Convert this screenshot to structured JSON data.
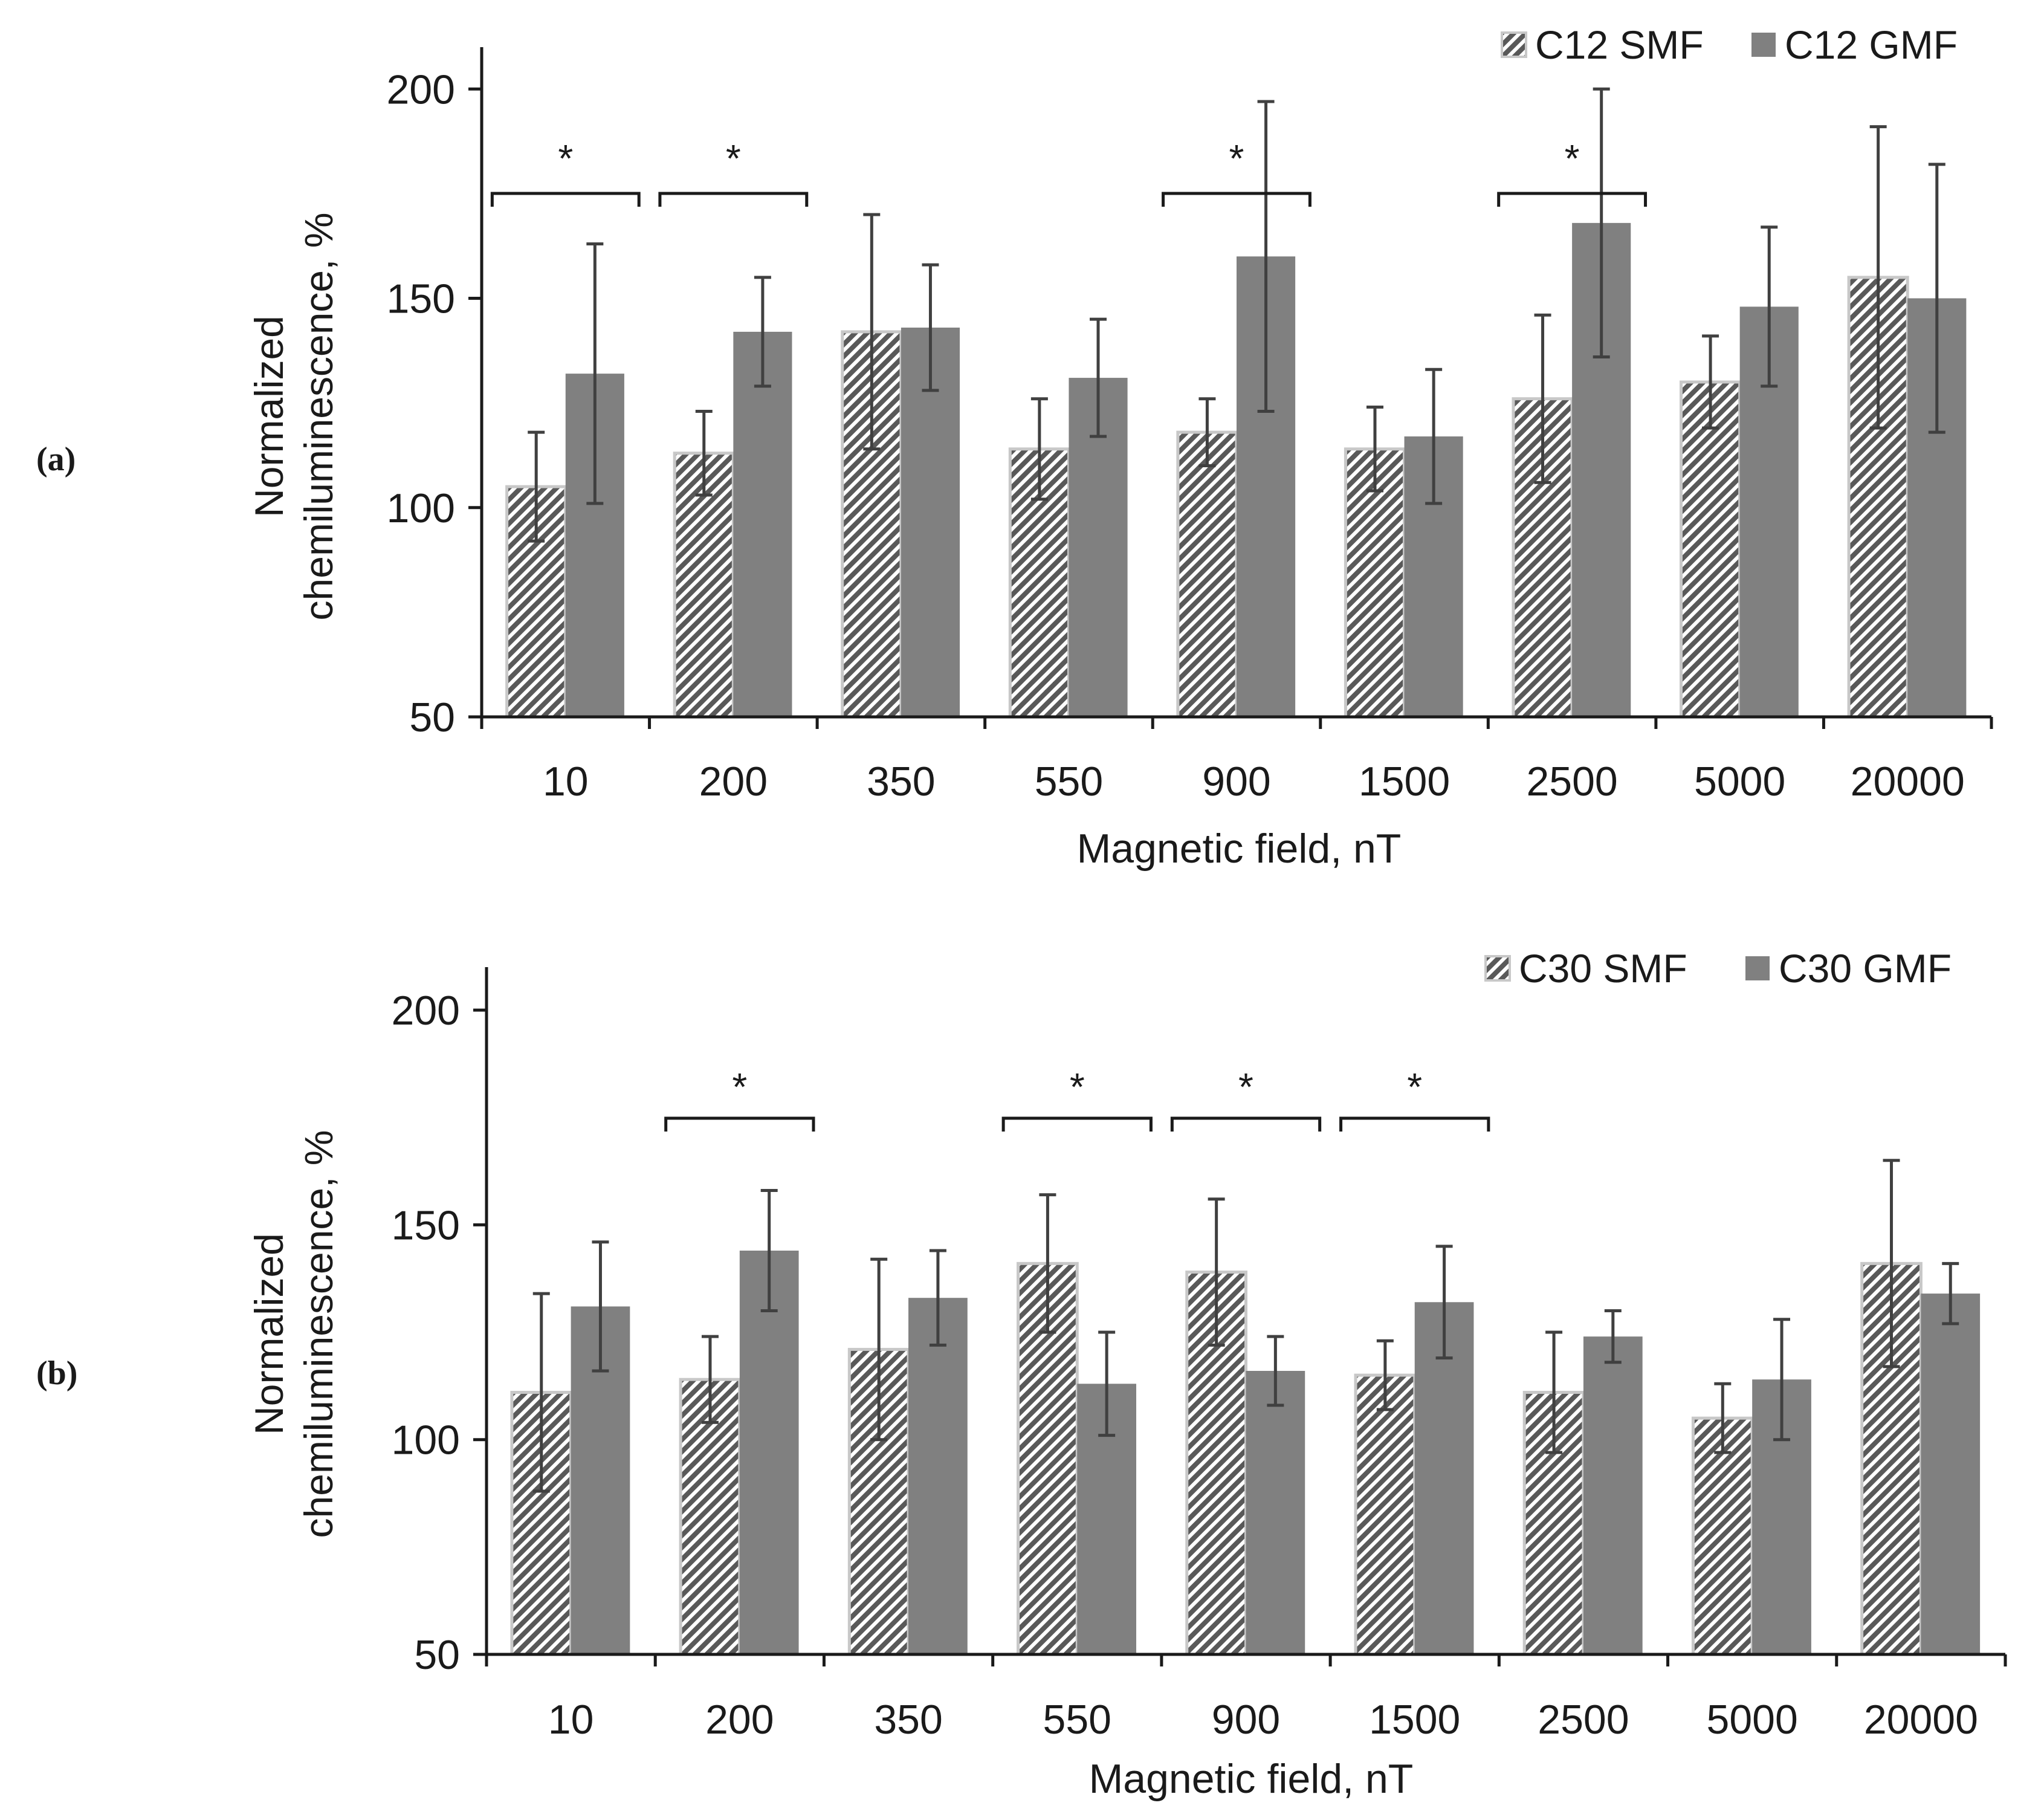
{
  "chart_data": [
    {
      "type": "bar",
      "panel_label": "(a)",
      "categories": [
        "10",
        "200",
        "350",
        "550",
        "900",
        "1500",
        "2500",
        "5000",
        "20000"
      ],
      "series": [
        {
          "name": "C12 SMF",
          "pattern": "hatched",
          "values": [
            105,
            113,
            142,
            114,
            118,
            114,
            126,
            130,
            155
          ],
          "errors": [
            13,
            10,
            28,
            12,
            8,
            10,
            20,
            11,
            36
          ]
        },
        {
          "name": "C12 GMF",
          "pattern": "solid",
          "values": [
            132,
            142,
            143,
            131,
            160,
            117,
            168,
            148,
            150
          ],
          "errors": [
            31,
            13,
            15,
            14,
            37,
            16,
            32,
            19,
            32
          ]
        }
      ],
      "significance": [
        {
          "category": "10",
          "label": "*"
        },
        {
          "category": "200",
          "label": "*"
        },
        {
          "category": "900",
          "label": "*"
        },
        {
          "category": "2500",
          "label": "*"
        }
      ],
      "title": "",
      "xlabel": "Magnetic field, nT",
      "ylabel_lines": [
        "Normalized",
        "chemiluminescence, %"
      ],
      "ylim": [
        50,
        210
      ],
      "yticks": [
        50,
        100,
        150,
        200
      ],
      "legend_position": "top-right",
      "grid": false
    },
    {
      "type": "bar",
      "panel_label": "(b)",
      "categories": [
        "10",
        "200",
        "350",
        "550",
        "900",
        "1500",
        "2500",
        "5000",
        "20000"
      ],
      "series": [
        {
          "name": "C30 SMF",
          "pattern": "hatched",
          "values": [
            111,
            114,
            121,
            141,
            139,
            115,
            111,
            105,
            141
          ],
          "errors": [
            23,
            10,
            21,
            16,
            17,
            8,
            14,
            8,
            24
          ]
        },
        {
          "name": "C30 GMF",
          "pattern": "solid",
          "values": [
            131,
            144,
            133,
            113,
            116,
            132,
            124,
            114,
            134
          ],
          "errors": [
            15,
            14,
            11,
            12,
            8,
            13,
            6,
            14,
            7
          ]
        }
      ],
      "significance": [
        {
          "category": "200",
          "label": "*"
        },
        {
          "category": "550",
          "label": "*"
        },
        {
          "category": "900",
          "label": "*"
        },
        {
          "category": "1500",
          "label": "*"
        }
      ],
      "title": "",
      "xlabel": "Magnetic field, nT",
      "ylabel_lines": [
        "Normalized",
        "chemiluminescence, %"
      ],
      "ylim": [
        50,
        210
      ],
      "yticks": [
        50,
        100,
        150,
        200
      ],
      "legend_position": "top-right",
      "grid": false
    }
  ],
  "colors": {
    "gmf_fill": "#808080",
    "hatch_dark": "#595959",
    "hatch_light": "#ffffff",
    "smf_border": "#c8c8c8",
    "axis": "#1a1a1a",
    "error_bar": "#404040"
  }
}
